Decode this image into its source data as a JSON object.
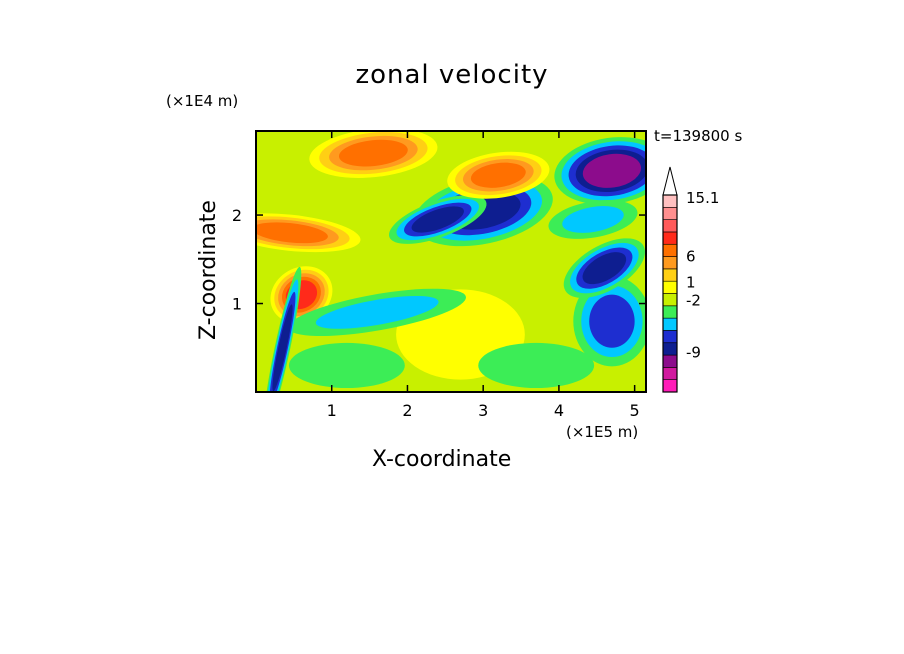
{
  "chart_data": {
    "type": "heatmap",
    "title": "zonal velocity",
    "xlabel": "X-coordinate",
    "ylabel": "Z-coordinate",
    "x_unit": "(×1E5 m)",
    "y_unit": "(×1E4 m)",
    "time_label": "t=139800 s",
    "x_range": [
      0,
      5.15
    ],
    "y_range": [
      0,
      2.95
    ],
    "x_ticks": [
      {
        "v": 1,
        "label": "1"
      },
      {
        "v": 2,
        "label": "2"
      },
      {
        "v": 3,
        "label": "3"
      },
      {
        "v": 4,
        "label": "4"
      },
      {
        "v": 5,
        "label": "5"
      }
    ],
    "y_ticks": [
      {
        "v": 1,
        "label": "1"
      },
      {
        "v": 2,
        "label": "2"
      }
    ],
    "colorbar": {
      "colors": [
        "#ff1cb8",
        "#d1199f",
        "#8c0c8c",
        "#0e1e90",
        "#1e2ed0",
        "#00c8ff",
        "#3ced56",
        "#c8f000",
        "#ffff00",
        "#ffcf14",
        "#ff9a1f",
        "#ff7000",
        "#ff2a1a",
        "#ff5a5a",
        "#ff8f8f",
        "#ffc0c0",
        "#ffffff"
      ],
      "labels": [
        {
          "value": "-9",
          "pos": 0.25
        },
        {
          "value": "-2",
          "pos": 0.58
        },
        {
          "value": "1",
          "pos": 0.695
        },
        {
          "value": "6",
          "pos": 0.86
        },
        {
          "value": "15.1",
          "pos": 1.23
        }
      ]
    },
    "regions": [
      {
        "x": 3.0,
        "y": 2.05,
        "rx": 0.55,
        "ry": 0.22,
        "angle": -12,
        "level": 3
      },
      {
        "x": 2.4,
        "y": 1.95,
        "rx": 0.4,
        "ry": 0.12,
        "angle": -20,
        "level": 3
      },
      {
        "x": 4.7,
        "y": 2.5,
        "rx": 0.45,
        "ry": 0.22,
        "angle": -8,
        "level": 2
      },
      {
        "x": 1.55,
        "y": 2.7,
        "rx": 0.5,
        "ry": 0.16,
        "angle": -6,
        "level": 11
      },
      {
        "x": 3.2,
        "y": 2.45,
        "rx": 0.4,
        "ry": 0.15,
        "angle": -8,
        "level": 11
      },
      {
        "x": 0.45,
        "y": 1.8,
        "rx": 0.55,
        "ry": 0.12,
        "angle": 6,
        "level": 11
      },
      {
        "x": 0.6,
        "y": 1.1,
        "rx": 0.25,
        "ry": 0.18,
        "angle": -30,
        "level": 12
      },
      {
        "x": 2.7,
        "y": 0.65,
        "rx": 0.5,
        "ry": 0.3,
        "angle": 0,
        "level": 8
      },
      {
        "x": 1.6,
        "y": 0.9,
        "rx": 0.7,
        "ry": 0.12,
        "angle": -10,
        "level": 5
      },
      {
        "x": 4.7,
        "y": 0.8,
        "rx": 0.3,
        "ry": 0.3,
        "angle": 0,
        "level": 4
      },
      {
        "x": 4.6,
        "y": 1.4,
        "rx": 0.35,
        "ry": 0.15,
        "angle": -30,
        "level": 3
      },
      {
        "x": 0.35,
        "y": 0.5,
        "rx": 0.06,
        "ry": 0.55,
        "angle": 12,
        "level": 3
      },
      {
        "x": 3.7,
        "y": 0.3,
        "rx": 0.45,
        "ry": 0.15,
        "angle": 0,
        "level": 6
      },
      {
        "x": 1.2,
        "y": 0.3,
        "rx": 0.45,
        "ry": 0.15,
        "angle": 0,
        "level": 6
      },
      {
        "x": 4.45,
        "y": 1.95,
        "rx": 0.35,
        "ry": 0.12,
        "angle": -10,
        "level": 5
      }
    ]
  }
}
